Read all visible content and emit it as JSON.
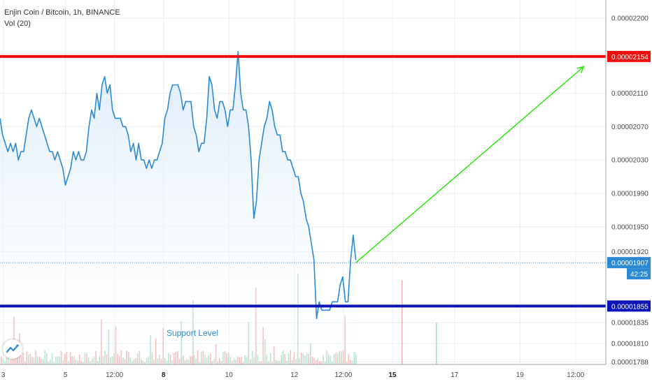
{
  "header": {
    "symbol_line": "Enjin Coin / Bitcoin, 1h, BINANCE",
    "volume_label": "Vol (20)"
  },
  "annotations": {
    "support_label": "Support Level"
  },
  "price_tags": {
    "resistance": "0.00002154",
    "current": "0.00001907",
    "countdown": "42:25",
    "support": "0.00001855"
  },
  "colors": {
    "price_line": "#2a8ad6",
    "area_fill": "#d9eafa",
    "resistance": "#f20d0d",
    "support": "#0a14b8",
    "arrow": "#2ee60f",
    "volume_up": "#a8dcc5",
    "volume_down": "#f4b0b0",
    "grid": "#e8eef5"
  },
  "chart_data": {
    "type": "line",
    "title": "Enjin Coin / Bitcoin, 1h, BINANCE",
    "xlabel": "",
    "ylabel": "",
    "ylim": [
      1.785e-05,
      2.22e-05
    ],
    "y_ticks": [
      "0.00002200",
      "0.00002110",
      "0.00002070",
      "0.00002030",
      "0.00001990",
      "0.00001950",
      "0.00001920",
      "0.00001835",
      "0.00001810",
      "0.00001788"
    ],
    "x_ticks": [
      "3",
      "5",
      "12:00",
      "8",
      "10",
      "12",
      "12:00",
      "15",
      "17",
      "19",
      "12:00"
    ],
    "x_ticks_bold": [
      "8",
      "15"
    ],
    "series": [
      {
        "name": "",
        "points": [
          [
            0,
            2.08e-05
          ],
          [
            0.04,
            2.06e-05
          ],
          [
            0.08,
            2.05e-05
          ],
          [
            0.12,
            2.04e-05
          ],
          [
            0.16,
            2.05e-05
          ],
          [
            0.2,
            2.04e-05
          ],
          [
            0.24,
            2.05e-05
          ],
          [
            0.28,
            2.03e-05
          ],
          [
            0.32,
            2.04e-05
          ],
          [
            0.36,
            2.04e-05
          ],
          [
            0.4,
            2.06e-05
          ],
          [
            0.44,
            2.08e-05
          ],
          [
            0.48,
            2.09e-05
          ],
          [
            0.52,
            2.08e-05
          ],
          [
            0.56,
            2.07e-05
          ],
          [
            0.6,
            2.08e-05
          ],
          [
            0.64,
            2.07e-05
          ],
          [
            0.68,
            2.06e-05
          ],
          [
            0.72,
            2.05e-05
          ],
          [
            0.76,
            2.04e-05
          ],
          [
            0.8,
            2.04e-05
          ],
          [
            0.84,
            2.03e-05
          ],
          [
            0.88,
            2.04e-05
          ],
          [
            0.92,
            2.03e-05
          ],
          [
            0.96,
            2.02e-05
          ],
          [
            1.0,
            2e-05
          ],
          [
            1.04,
            2.01e-05
          ],
          [
            1.08,
            2.02e-05
          ],
          [
            1.12,
            2.04e-05
          ],
          [
            1.16,
            2.03e-05
          ],
          [
            1.2,
            2.04e-05
          ],
          [
            1.24,
            2.03e-05
          ],
          [
            1.28,
            2.03e-05
          ],
          [
            1.32,
            2.04e-05
          ],
          [
            1.36,
            2.07e-05
          ],
          [
            1.4,
            2.09e-05
          ],
          [
            1.44,
            2.08e-05
          ],
          [
            1.48,
            2.11e-05
          ],
          [
            1.52,
            2.09e-05
          ],
          [
            1.56,
            2.12e-05
          ],
          [
            1.6,
            2.13e-05
          ],
          [
            1.64,
            2.11e-05
          ],
          [
            1.68,
            2.12e-05
          ],
          [
            1.72,
            2.09e-05
          ],
          [
            1.76,
            2.08e-05
          ],
          [
            1.8,
            2.08e-05
          ],
          [
            1.84,
            2.08e-05
          ],
          [
            1.88,
            2.07e-05
          ],
          [
            1.92,
            2.07e-05
          ],
          [
            1.96,
            2.06e-05
          ],
          [
            2.0,
            2.04e-05
          ],
          [
            2.04,
            2.05e-05
          ],
          [
            2.08,
            2.03e-05
          ],
          [
            2.12,
            2.05e-05
          ],
          [
            2.16,
            2.03e-05
          ],
          [
            2.2,
            2.03e-05
          ],
          [
            2.24,
            2.02e-05
          ],
          [
            2.28,
            2.03e-05
          ],
          [
            2.32,
            2.02e-05
          ],
          [
            2.36,
            2.03e-05
          ],
          [
            2.4,
            2.03e-05
          ],
          [
            2.44,
            2.04e-05
          ],
          [
            2.48,
            2.05e-05
          ],
          [
            2.52,
            2.08e-05
          ],
          [
            2.56,
            2.09e-05
          ],
          [
            2.6,
            2.11e-05
          ],
          [
            2.64,
            2.12e-05
          ],
          [
            2.68,
            2.12e-05
          ],
          [
            2.72,
            2.12e-05
          ],
          [
            2.76,
            2.11e-05
          ],
          [
            2.8,
            2.09e-05
          ],
          [
            2.84,
            2.1e-05
          ],
          [
            2.88,
            2.1e-05
          ],
          [
            2.92,
            2.1e-05
          ],
          [
            2.96,
            2.07e-05
          ],
          [
            3.0,
            2.06e-05
          ],
          [
            3.04,
            2.04e-05
          ],
          [
            3.08,
            2.05e-05
          ],
          [
            3.12,
            2.05e-05
          ],
          [
            3.16,
            2.08e-05
          ],
          [
            3.2,
            2.13e-05
          ],
          [
            3.24,
            2.12e-05
          ],
          [
            3.28,
            2.09e-05
          ],
          [
            3.32,
            2.08e-05
          ],
          [
            3.36,
            2.1e-05
          ],
          [
            3.4,
            2.1e-05
          ],
          [
            3.44,
            2.09e-05
          ],
          [
            3.48,
            2.07e-05
          ],
          [
            3.52,
            2.09e-05
          ],
          [
            3.56,
            2.09e-05
          ],
          [
            3.6,
            2.12e-05
          ],
          [
            3.64,
            2.16e-05
          ],
          [
            3.68,
            2.11e-05
          ],
          [
            3.72,
            2.09e-05
          ],
          [
            3.76,
            2.09e-05
          ],
          [
            3.8,
            2.07e-05
          ],
          [
            3.84,
            2.03e-05
          ],
          [
            3.88,
            1.96e-05
          ],
          [
            3.92,
            1.98e-05
          ],
          [
            3.96,
            2.03e-05
          ],
          [
            4.0,
            2.05e-05
          ],
          [
            4.04,
            2.07e-05
          ],
          [
            4.08,
            2.08e-05
          ],
          [
            4.12,
            2.1e-05
          ],
          [
            4.16,
            2.09e-05
          ],
          [
            4.2,
            2.07e-05
          ],
          [
            4.24,
            2.06e-05
          ],
          [
            4.28,
            2.06e-05
          ],
          [
            4.32,
            2.04e-05
          ],
          [
            4.36,
            2.04e-05
          ],
          [
            4.4,
            2.03e-05
          ],
          [
            4.44,
            2.03e-05
          ],
          [
            4.48,
            2.02e-05
          ],
          [
            4.52,
            2.01e-05
          ],
          [
            4.56,
            2.01e-05
          ],
          [
            4.6,
            1.99e-05
          ],
          [
            4.64,
            1.98e-05
          ],
          [
            4.68,
            1.96e-05
          ],
          [
            4.72,
            1.95e-05
          ],
          [
            4.76,
            1.93e-05
          ],
          [
            4.8,
            1.91e-05
          ],
          [
            4.84,
            1.84e-05
          ],
          [
            4.88,
            1.86e-05
          ],
          [
            4.92,
            1.85e-05
          ],
          [
            4.96,
            1.85e-05
          ],
          [
            5.0,
            1.85e-05
          ],
          [
            5.04,
            1.85e-05
          ],
          [
            5.08,
            1.86e-05
          ],
          [
            5.12,
            1.86e-05
          ],
          [
            5.16,
            1.86e-05
          ],
          [
            5.2,
            1.88e-05
          ],
          [
            5.24,
            1.89e-05
          ],
          [
            5.28,
            1.86e-05
          ],
          [
            5.32,
            1.86e-05
          ],
          [
            5.36,
            1.91e-05
          ],
          [
            5.4,
            1.94e-05
          ],
          [
            5.44,
            1.91e-05
          ]
        ]
      }
    ],
    "levels": [
      {
        "name": "resistance",
        "value": 2.154e-05
      },
      {
        "name": "support",
        "value": 1.855e-05
      }
    ],
    "last_price": 1.907e-05,
    "projection": [
      [
        5.44,
        1.907e-05
      ],
      [
        7.0,
        2.147e-05
      ]
    ]
  }
}
